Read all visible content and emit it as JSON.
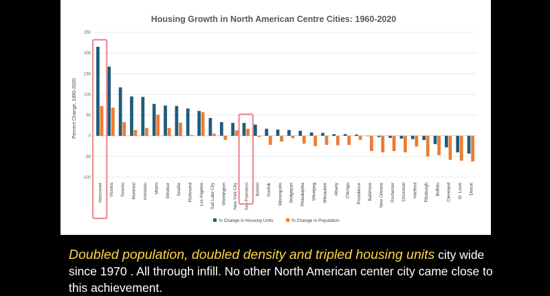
{
  "chart_data": {
    "type": "bar",
    "title": "Housing Growth in North American Centre Cities: 1960-2020",
    "ylabel": "Percent Change, 1960-2020",
    "xlabel": "",
    "ylim": [
      -100,
      250
    ],
    "yticks": [
      250,
      200,
      150,
      100,
      50,
      0,
      -50,
      -100
    ],
    "grid": true,
    "legend_position": "bottom",
    "categories": [
      "Vancouver",
      "Victoria",
      "Toronto",
      "Montreal",
      "Honolulu",
      "Miami",
      "Windsor",
      "Seattle",
      "Richmond",
      "Los Angeles",
      "Salt Lake City",
      "Washington",
      "New York City",
      "San Francisco",
      "Boston",
      "Norfolk",
      "Minneapolis",
      "Bridgeport",
      "Philadelphia",
      "Winnipeg",
      "Milwaukee",
      "Albany",
      "Chicago",
      "Providence",
      "Baltimore",
      "New Orleans",
      "Rochester",
      "Cincinnati",
      "Hartford",
      "Pittsburgh",
      "Buffalo",
      "Cleveland",
      "St. Louis",
      "Detroit"
    ],
    "series": [
      {
        "name": "% Change in Housing Units",
        "color": "#1f5c7a",
        "values": [
          215,
          167,
          117,
          95,
          94,
          77,
          73,
          72,
          66,
          60,
          43,
          33,
          31,
          31,
          27,
          17,
          15,
          14,
          12,
          8,
          7,
          4,
          4,
          3,
          0,
          -3,
          -5,
          -7,
          -8,
          -10,
          -20,
          -28,
          -40,
          -43
        ]
      },
      {
        "name": "% Change in Population",
        "color": "#ed7d31",
        "values": [
          72,
          68,
          33,
          14,
          19,
          51,
          19,
          32,
          2,
          57,
          5,
          -10,
          13,
          17,
          -3,
          -22,
          -14,
          -6,
          -19,
          -25,
          -22,
          -23,
          -22,
          -10,
          -37,
          -40,
          -37,
          -40,
          -26,
          -50,
          -47,
          -58,
          -60,
          -62
        ]
      }
    ],
    "highlighted": [
      "Vancouver",
      "San Francisco"
    ]
  },
  "caption": {
    "highlight": "Doubled population, doubled density and tripled housing units",
    "rest": " city wide since 1970 . All through infill. No other North American center city came close to this achievement."
  }
}
